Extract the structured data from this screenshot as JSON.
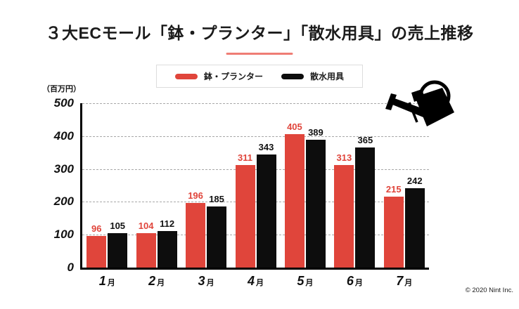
{
  "title": "３大ECモール「鉢・プランター」「散水用具」の売上推移",
  "unit_label": "（百万円）",
  "copyright": "© 2020 Nint Inc.",
  "colors": {
    "series1_red": "#e0453b",
    "series2_black": "#0d0d0d",
    "underline_red": "#ef7d75",
    "gridline_gray": "#a8a8a8",
    "black_value_label": "#111111"
  },
  "legend": {
    "items": [
      {
        "label": "鉢・プランター",
        "color": "#e0453b"
      },
      {
        "label": "散水用具",
        "color": "#0d0d0d"
      }
    ]
  },
  "chart_data": {
    "type": "bar",
    "title": "３大ECモール「鉢・プランター」「散水用具」の売上推移",
    "categories": [
      "1月",
      "2月",
      "3月",
      "4月",
      "5月",
      "6月",
      "7月"
    ],
    "series": [
      {
        "name": "鉢・プランター",
        "color": "#e0453b",
        "values": [
          96,
          104,
          196,
          311,
          405,
          313,
          215
        ]
      },
      {
        "name": "散水用具",
        "color": "#0d0d0d",
        "values": [
          105,
          112,
          185,
          343,
          389,
          365,
          242
        ]
      }
    ],
    "xlabel": "",
    "ylabel": "（百万円）",
    "ylim": [
      0,
      500
    ],
    "yticks": [
      0,
      100,
      200,
      300,
      400,
      500
    ],
    "grid": "horizontal-dashed",
    "legend_position": "top-center",
    "value_labels": "above-bars"
  }
}
